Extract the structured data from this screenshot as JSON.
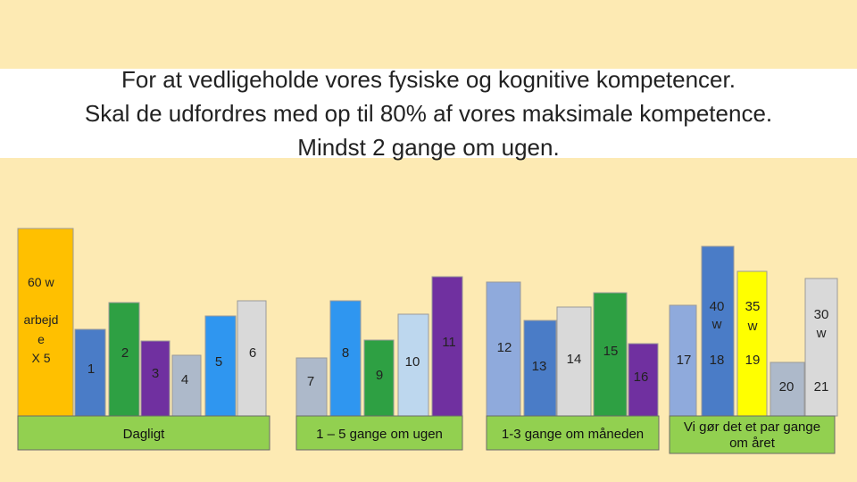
{
  "title_lines": [
    "For at vedligeholde vores fysiske og kognitive kompetencer.",
    "Skal de udfordres med op til 80% af vores maksimale kompetence.",
    "Mindst 2 gange om ugen."
  ],
  "chart_data": {
    "type": "bar",
    "groups": [
      {
        "label": "Dagligt",
        "bars": [
          {
            "label": "60 w",
            "extra": [
              "arbejd",
              "e",
              "X 5"
            ],
            "value": 210,
            "color": "#ffc000"
          },
          {
            "label": "1",
            "value": 97,
            "color": "#4a7cc7"
          },
          {
            "label": "2",
            "value": 127,
            "color": "#2ea043"
          },
          {
            "label": "3",
            "value": 84,
            "color": "#7030a0"
          },
          {
            "label": "4",
            "value": 68,
            "color": "#adb9ca"
          },
          {
            "label": "5",
            "value": 112,
            "color": "#2f96f0"
          },
          {
            "label": "6",
            "value": 129,
            "color": "#d9d9d9"
          }
        ]
      },
      {
        "label": "1 – 5  gange om ugen",
        "bars": [
          {
            "label": "7",
            "value": 65,
            "color": "#adb9ca"
          },
          {
            "label": "8",
            "value": 129,
            "color": "#2f96f0"
          },
          {
            "label": "9",
            "value": 85,
            "color": "#2ea043"
          },
          {
            "label": "10",
            "value": 114,
            "color": "#bdd7ee"
          },
          {
            "label": "11",
            "value": 156,
            "color": "#7030a0"
          }
        ]
      },
      {
        "label": "1-3 gange om måneden",
        "bars": [
          {
            "label": "12",
            "value": 150,
            "color": "#8faadc"
          },
          {
            "label": "13",
            "value": 107,
            "color": "#4a7cc7"
          },
          {
            "label": "14",
            "value": 122,
            "color": "#d9d9d9"
          },
          {
            "label": "15",
            "value": 138,
            "color": "#2ea043"
          },
          {
            "label": "16",
            "value": 81,
            "color": "#7030a0"
          }
        ]
      },
      {
        "label": "Vi gør det et par gange om året",
        "bars": [
          {
            "label": "17",
            "value": 124,
            "color": "#8faadc"
          },
          {
            "label": "18",
            "extra": [
              "40",
              "w"
            ],
            "value": 190,
            "color": "#4a7cc7"
          },
          {
            "label": "19",
            "extra": [
              "35",
              "w"
            ],
            "value": 162,
            "color": "#ffff00"
          },
          {
            "label": "20",
            "value": 60,
            "color": "#adb9ca"
          },
          {
            "label": "21",
            "extra": [
              "30",
              "w"
            ],
            "value": 154,
            "color": "#d9d9d9"
          }
        ]
      }
    ]
  }
}
